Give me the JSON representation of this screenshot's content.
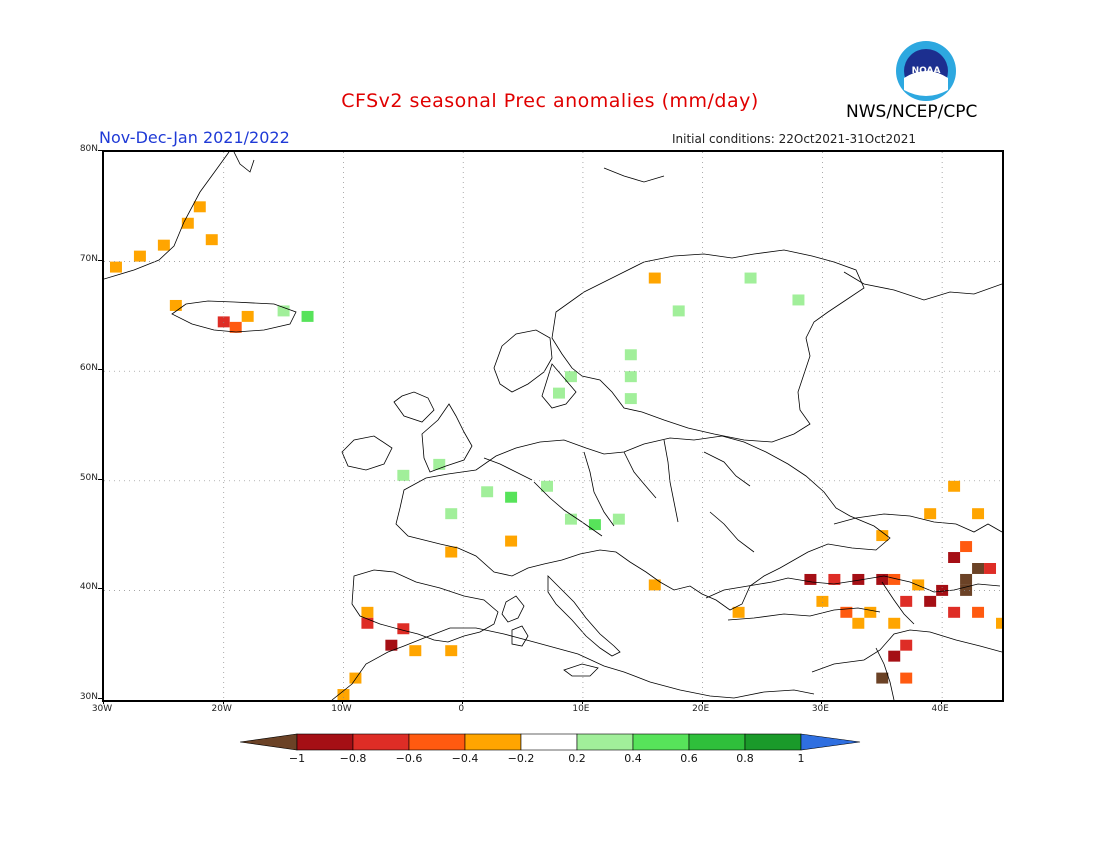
{
  "title": "CFSv2 seasonal Prec anomalies (mm/day)",
  "period": "Nov-Dec-Jan 2021/2022",
  "initial_conditions": "Initial conditions: 22Oct2021-31Oct2021",
  "agency": "NWS/NCEP/CPC",
  "logo_text": "NOAA",
  "map": {
    "lon_range": [
      -30,
      45
    ],
    "lat_range": [
      30,
      80
    ],
    "lat_labels": [
      {
        "lat": 80,
        "text": "80N"
      },
      {
        "lat": 70,
        "text": "70N"
      },
      {
        "lat": 60,
        "text": "60N"
      },
      {
        "lat": 50,
        "text": "50N"
      },
      {
        "lat": 40,
        "text": "40N"
      },
      {
        "lat": 30,
        "text": "30N"
      }
    ],
    "lon_labels": [
      {
        "lon": -30,
        "text": "30W"
      },
      {
        "lon": -20,
        "text": "20W"
      },
      {
        "lon": -10,
        "text": "10W"
      },
      {
        "lon": 0,
        "text": "0"
      },
      {
        "lon": 10,
        "text": "10E"
      },
      {
        "lon": 20,
        "text": "20E"
      },
      {
        "lon": 30,
        "text": "30E"
      },
      {
        "lon": 40,
        "text": "40E"
      }
    ],
    "grid_dotted": true,
    "anomaly_cells": [
      {
        "lon": -22,
        "lat": 75,
        "value": -0.3
      },
      {
        "lon": -23,
        "lat": 73.5,
        "value": -0.3
      },
      {
        "lon": -21,
        "lat": 72,
        "value": -0.3
      },
      {
        "lon": -25,
        "lat": 71.5,
        "value": -0.3
      },
      {
        "lon": -27,
        "lat": 70.5,
        "value": -0.3
      },
      {
        "lon": -29,
        "lat": 69.5,
        "value": -0.3
      },
      {
        "lon": -24,
        "lat": 66,
        "value": -0.3
      },
      {
        "lon": -20,
        "lat": 64.5,
        "value": -0.7
      },
      {
        "lon": -19,
        "lat": 64,
        "value": -0.5
      },
      {
        "lon": -18,
        "lat": 65,
        "value": -0.3
      },
      {
        "lon": -15,
        "lat": 65.5,
        "value": 0.3
      },
      {
        "lon": -13,
        "lat": 65,
        "value": 0.5
      },
      {
        "lon": 16,
        "lat": 68.5,
        "value": -0.3
      },
      {
        "lon": 24,
        "lat": 68.5,
        "value": 0.3
      },
      {
        "lon": 28,
        "lat": 66.5,
        "value": 0.3
      },
      {
        "lon": 18,
        "lat": 65.5,
        "value": 0.3
      },
      {
        "lon": 14,
        "lat": 61.5,
        "value": 0.3
      },
      {
        "lon": 14,
        "lat": 59.5,
        "value": 0.3
      },
      {
        "lon": 9,
        "lat": 59.5,
        "value": 0.3
      },
      {
        "lon": 8,
        "lat": 58,
        "value": 0.3
      },
      {
        "lon": 14,
        "lat": 57.5,
        "value": 0.3
      },
      {
        "lon": -2,
        "lat": 51.5,
        "value": 0.3
      },
      {
        "lon": -5,
        "lat": 50.5,
        "value": 0.3
      },
      {
        "lon": 2,
        "lat": 49,
        "value": 0.3
      },
      {
        "lon": 4,
        "lat": 48.5,
        "value": 0.5
      },
      {
        "lon": 7,
        "lat": 49.5,
        "value": 0.3
      },
      {
        "lon": -1,
        "lat": 47,
        "value": 0.3
      },
      {
        "lon": 9,
        "lat": 46.5,
        "value": 0.3
      },
      {
        "lon": 11,
        "lat": 46,
        "value": 0.5
      },
      {
        "lon": 13,
        "lat": 46.5,
        "value": 0.3
      },
      {
        "lon": 4,
        "lat": 44.5,
        "value": -0.3
      },
      {
        "lon": -1,
        "lat": 43.5,
        "value": -0.3
      },
      {
        "lon": -8,
        "lat": 38,
        "value": -0.3
      },
      {
        "lon": -8,
        "lat": 37,
        "value": -0.7
      },
      {
        "lon": -5,
        "lat": 36.5,
        "value": -0.7
      },
      {
        "lon": -6,
        "lat": 35,
        "value": -0.9
      },
      {
        "lon": -4,
        "lat": 34.5,
        "value": -0.3
      },
      {
        "lon": -1,
        "lat": 34.5,
        "value": -0.3
      },
      {
        "lon": -9,
        "lat": 32,
        "value": -0.3
      },
      {
        "lon": -10,
        "lat": 30.5,
        "value": -0.3
      },
      {
        "lon": 23,
        "lat": 38,
        "value": -0.3
      },
      {
        "lon": 16,
        "lat": 40.5,
        "value": -0.3
      },
      {
        "lon": 35,
        "lat": 45,
        "value": -0.3
      },
      {
        "lon": 39,
        "lat": 47,
        "value": -0.3
      },
      {
        "lon": 41,
        "lat": 49.5,
        "value": -0.3
      },
      {
        "lon": 43,
        "lat": 47,
        "value": -0.3
      },
      {
        "lon": 42,
        "lat": 44,
        "value": -0.5
      },
      {
        "lon": 41,
        "lat": 43,
        "value": -0.9
      },
      {
        "lon": 43,
        "lat": 42,
        "value": -1.1
      },
      {
        "lon": 44,
        "lat": 42,
        "value": -0.7
      },
      {
        "lon": 42,
        "lat": 41,
        "value": -1.1
      },
      {
        "lon": 29,
        "lat": 41,
        "value": -0.9
      },
      {
        "lon": 31,
        "lat": 41,
        "value": -0.7
      },
      {
        "lon": 33,
        "lat": 41,
        "value": -0.9
      },
      {
        "lon": 35,
        "lat": 41,
        "value": -0.9
      },
      {
        "lon": 36,
        "lat": 41,
        "value": -0.5
      },
      {
        "lon": 38,
        "lat": 40.5,
        "value": -0.3
      },
      {
        "lon": 40,
        "lat": 40,
        "value": -0.9
      },
      {
        "lon": 42,
        "lat": 40,
        "value": -1.1
      },
      {
        "lon": 37,
        "lat": 39,
        "value": -0.7
      },
      {
        "lon": 39,
        "lat": 39,
        "value": -0.9
      },
      {
        "lon": 41,
        "lat": 38,
        "value": -0.7
      },
      {
        "lon": 43,
        "lat": 38,
        "value": -0.5
      },
      {
        "lon": 45,
        "lat": 37,
        "value": -0.3
      },
      {
        "lon": 30,
        "lat": 39,
        "value": -0.3
      },
      {
        "lon": 32,
        "lat": 38,
        "value": -0.5
      },
      {
        "lon": 34,
        "lat": 38,
        "value": -0.3
      },
      {
        "lon": 36,
        "lat": 37,
        "value": -0.3
      },
      {
        "lon": 33,
        "lat": 37,
        "value": -0.3
      },
      {
        "lon": 37,
        "lat": 35,
        "value": -0.7
      },
      {
        "lon": 36,
        "lat": 34,
        "value": -0.9
      },
      {
        "lon": 35,
        "lat": 32,
        "value": -1.1
      },
      {
        "lon": 37,
        "lat": 32,
        "value": -0.5
      }
    ]
  },
  "colorbar": {
    "labels": [
      "-1",
      "-0.8",
      "-0.6",
      "-0.4",
      "-0.2",
      "0.2",
      "0.4",
      "0.6",
      "0.8",
      "1"
    ],
    "colors": {
      "lt_neg1": "#6b4226",
      "neg1_neg08": "#a50f15",
      "neg08_neg06": "#de2d26",
      "neg06_neg04": "#ff5a10",
      "neg04_neg02": "#ffa500",
      "neg02_02": "#ffffff",
      "02_04": "#a1ef9a",
      "04_06": "#57e35a",
      "06_08": "#2fbf3b",
      "08_1": "#1a9a2a",
      "gt_1": "#2f6fe0"
    }
  }
}
